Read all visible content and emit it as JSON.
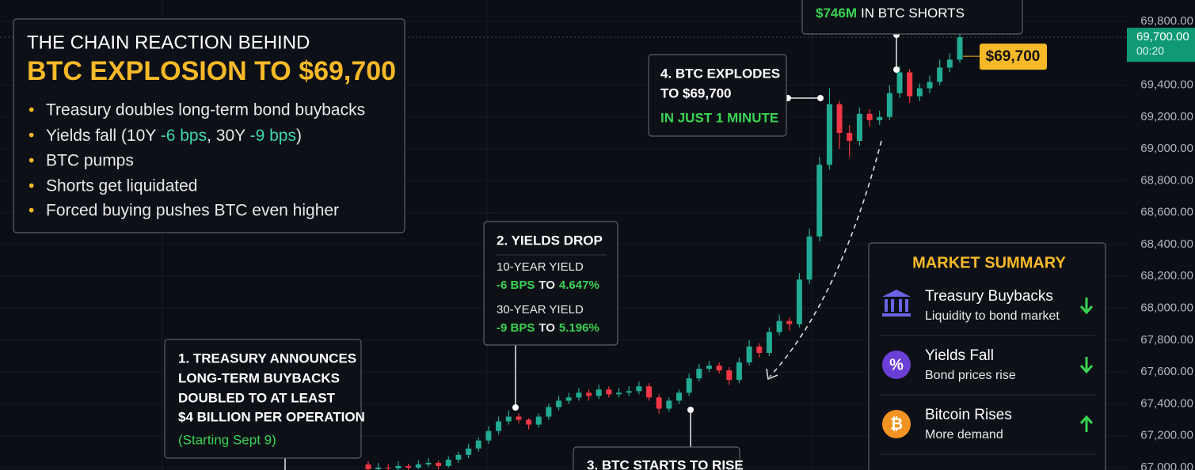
{
  "chart_data": {
    "type": "candlestick",
    "up_color": "#22ab94",
    "down_color": "#f23645",
    "ohlc": [
      [
        67020,
        67040,
        66975,
        66990
      ],
      [
        66990,
        67030,
        66980,
        67000
      ],
      [
        67000,
        67020,
        66970,
        66995
      ],
      [
        66995,
        67040,
        66985,
        67010
      ],
      [
        67010,
        67025,
        66980,
        67000
      ],
      [
        67000,
        67045,
        66990,
        67020
      ],
      [
        67020,
        67060,
        67005,
        67030
      ],
      [
        67030,
        67045,
        66990,
        67010
      ],
      [
        67010,
        67070,
        67000,
        67050
      ],
      [
        67050,
        67100,
        67030,
        67080
      ],
      [
        67080,
        67150,
        67060,
        67120
      ],
      [
        67120,
        67190,
        67100,
        67170
      ],
      [
        67170,
        67260,
        67150,
        67230
      ],
      [
        67230,
        67320,
        67210,
        67290
      ],
      [
        67290,
        67360,
        67270,
        67320
      ],
      [
        67320,
        67340,
        67280,
        67300
      ],
      [
        67300,
        67310,
        67240,
        67270
      ],
      [
        67270,
        67340,
        67250,
        67320
      ],
      [
        67320,
        67400,
        67300,
        67380
      ],
      [
        67380,
        67450,
        67360,
        67420
      ],
      [
        67420,
        67470,
        67400,
        67440
      ],
      [
        67440,
        67500,
        67420,
        67470
      ],
      [
        67470,
        67490,
        67420,
        67450
      ],
      [
        67450,
        67520,
        67430,
        67490
      ],
      [
        67490,
        67510,
        67440,
        67460
      ],
      [
        67460,
        67500,
        67440,
        67470
      ],
      [
        67470,
        67510,
        67450,
        67480
      ],
      [
        67480,
        67540,
        67460,
        67510
      ],
      [
        67510,
        67530,
        67420,
        67440
      ],
      [
        67440,
        67460,
        67340,
        67370
      ],
      [
        67370,
        67440,
        67350,
        67420
      ],
      [
        67420,
        67490,
        67400,
        67470
      ],
      [
        67470,
        67590,
        67450,
        67560
      ],
      [
        67560,
        67650,
        67540,
        67620
      ],
      [
        67620,
        67670,
        67600,
        67640
      ],
      [
        67640,
        67660,
        67590,
        67610
      ],
      [
        67610,
        67630,
        67520,
        67550
      ],
      [
        67550,
        67690,
        67530,
        67660
      ],
      [
        67660,
        67800,
        67640,
        67760
      ],
      [
        67760,
        67780,
        67690,
        67720
      ],
      [
        67720,
        67880,
        67700,
        67850
      ],
      [
        67850,
        67960,
        67830,
        67920
      ],
      [
        67920,
        67940,
        67860,
        67900
      ],
      [
        67900,
        68220,
        67880,
        68180
      ],
      [
        68180,
        68500,
        68150,
        68450
      ],
      [
        68450,
        68950,
        68420,
        68900
      ],
      [
        68900,
        69380,
        68870,
        69280
      ],
      [
        69280,
        69300,
        69000,
        69100
      ],
      [
        69100,
        69150,
        68950,
        69050
      ],
      [
        69050,
        69260,
        69020,
        69220
      ],
      [
        69220,
        69250,
        69140,
        69180
      ],
      [
        69180,
        69240,
        69150,
        69200
      ],
      [
        69200,
        69400,
        69180,
        69350
      ],
      [
        69350,
        69520,
        69320,
        69480
      ],
      [
        69480,
        69500,
        69290,
        69330
      ],
      [
        69330,
        69410,
        69300,
        69380
      ],
      [
        69380,
        69460,
        69350,
        69420
      ],
      [
        69420,
        69560,
        69400,
        69510
      ],
      [
        69510,
        69600,
        69480,
        69560
      ],
      [
        69560,
        69740,
        69540,
        69700
      ]
    ],
    "ylim": [
      66985,
      69934
    ],
    "yticks": [
      {
        "value": 67000,
        "label": "67,000.00"
      },
      {
        "value": 67200,
        "label": "67,200.00"
      },
      {
        "value": 67400,
        "label": "67,400.00"
      },
      {
        "value": 67600,
        "label": "67,600.00"
      },
      {
        "value": 67800,
        "label": "67,800.00"
      },
      {
        "value": 68000,
        "label": "68,000.00"
      },
      {
        "value": 68200,
        "label": "68,200.00"
      },
      {
        "value": 68400,
        "label": "68,400.00"
      },
      {
        "value": 68600,
        "label": "68,600.00"
      },
      {
        "value": 68800,
        "label": "68,800.00"
      },
      {
        "value": 69000,
        "label": "69,000.00"
      },
      {
        "value": 69200,
        "label": "69,200.00"
      },
      {
        "value": 69400,
        "label": "69,400.00"
      },
      {
        "value": 69800,
        "label": "69,800.00"
      }
    ],
    "grid": true,
    "last_price": {
      "value": 69700,
      "label": "69,700.00"
    },
    "countdown": "00:20",
    "price_tag": "$69,700"
  },
  "headline": {
    "kicker": "THE CHAIN REACTION BEHIND",
    "title": "BTC EXPLOSION TO $69,700",
    "bullets": [
      [
        "Treasury doubles long-term bond buybacks"
      ],
      [
        "Yields fall (10Y ",
        "-6 bps",
        ", 30Y ",
        "-9 bps",
        ")"
      ],
      [
        "BTC pumps"
      ],
      [
        "Shorts get liquidated"
      ],
      [
        "Forced buying pushes BTC even higher"
      ]
    ]
  },
  "callouts": [
    {
      "lines": [
        "1. TREASURY ANNOUNCES",
        "LONG-TERM BUYBACKS",
        "DOUBLED TO AT LEAST",
        "$4 BILLION PER OPERATION"
      ],
      "note": "(Starting Sept 9)"
    },
    {
      "title": "2. YIELDS DROP",
      "items": [
        {
          "label": "10-YEAR YIELD",
          "change": "-6 BPS",
          "to": "TO",
          "value": "4.647%"
        },
        {
          "label": "30-YEAR YIELD",
          "change": "-9 BPS",
          "to": "TO",
          "value": "5.196%"
        }
      ]
    },
    {
      "title": "3. BTC STARTS TO RISE"
    },
    {
      "lines": [
        "4. BTC EXPLODES",
        "TO $69,700"
      ],
      "note": "IN JUST 1 MINUTE"
    },
    {
      "amount": "$746M",
      "text": "IN BTC SHORTS"
    }
  ],
  "market_summary": {
    "title": "MARKET SUMMARY",
    "rows": [
      {
        "title": "Treasury Buybacks",
        "subtitle": "Liquidity to bond market"
      },
      {
        "icon": "%",
        "title": "Yields Fall",
        "subtitle": "Bond prices rise"
      },
      {
        "icon": "₿",
        "title": "Bitcoin Rises",
        "subtitle": "More demand"
      }
    ]
  }
}
